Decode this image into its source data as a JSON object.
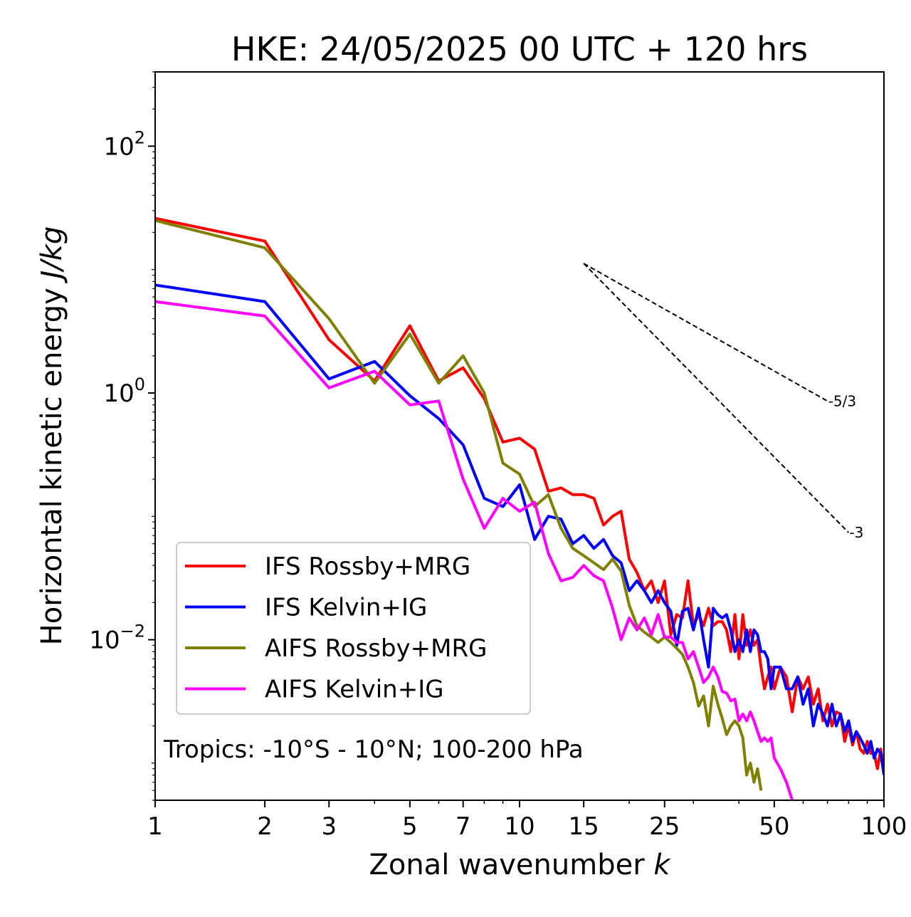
{
  "chart_data": {
    "type": "line",
    "title": "HKE: 24/05/2025 00 UTC + 120 hrs",
    "xlabel_text": "Zonal wavenumber ",
    "xlabel_var": "k",
    "ylabel_text": "Horizontal kinetic energy ",
    "ylabel_units": "J/kg",
    "xscale": "log",
    "yscale": "log",
    "xlim": [
      1,
      100
    ],
    "ylim": [
      0.0005,
      400
    ],
    "xticks": [
      1,
      2,
      3,
      5,
      7,
      10,
      15,
      25,
      50,
      100
    ],
    "xtick_labels": [
      "1",
      "2",
      "3",
      "5",
      "7",
      "10",
      "15",
      "25",
      "50",
      "100"
    ],
    "yticks": [
      0.01,
      1,
      100
    ],
    "ytick_labels": [
      {
        "base": "10",
        "exp": "−2"
      },
      {
        "base": "10",
        "exp": "0"
      },
      {
        "base": "10",
        "exp": "2"
      }
    ],
    "annotation": "Tropics: -10°S - 10°N; 100-200 hPa",
    "legend_position": "lower-left",
    "reference_slopes": [
      {
        "label": "-5/3",
        "slope": -1.6667,
        "x_start": 15,
        "y_start": 11.2,
        "x_end": 70
      },
      {
        "label": "-3",
        "slope": -3,
        "x_start": 15,
        "y_start": 11.2,
        "x_end": 80
      }
    ],
    "series": [
      {
        "name": "IFS Rossby+MRG",
        "color": "#ff0000",
        "x": [
          1,
          2,
          3,
          4,
          5,
          6,
          7,
          8,
          9,
          10,
          11,
          12,
          13,
          14,
          15,
          16,
          17,
          18,
          19,
          20,
          21,
          22,
          23,
          24,
          25,
          26,
          27,
          28,
          29,
          30,
          31,
          32,
          33,
          34,
          35,
          36,
          37,
          38,
          39,
          40,
          41,
          42,
          43,
          44,
          45,
          46,
          47,
          48,
          49,
          50,
          52,
          54,
          56,
          58,
          60,
          62,
          64,
          66,
          68,
          70,
          72,
          74,
          76,
          78,
          80,
          82,
          84,
          86,
          88,
          90,
          92,
          94,
          96,
          98,
          100
        ],
        "values": [
          26,
          17,
          2.7,
          1.25,
          3.5,
          1.25,
          1.6,
          0.9,
          0.4,
          0.43,
          0.35,
          0.16,
          0.17,
          0.15,
          0.15,
          0.14,
          0.085,
          0.1,
          0.11,
          0.045,
          0.035,
          0.025,
          0.03,
          0.02,
          0.03,
          0.011,
          0.016,
          0.015,
          0.03,
          0.013,
          0.016,
          0.013,
          0.018,
          0.013,
          0.014,
          0.014,
          0.012,
          0.008,
          0.016,
          0.007,
          0.016,
          0.009,
          0.012,
          0.009,
          0.01,
          0.006,
          0.004,
          0.005,
          0.006,
          0.004,
          0.006,
          0.005,
          0.0026,
          0.005,
          0.004,
          0.005,
          0.003,
          0.004,
          0.0022,
          0.003,
          0.002,
          0.0026,
          0.0025,
          0.0015,
          0.002,
          0.0014,
          0.0018,
          0.0013,
          0.0012,
          0.0015,
          0.0012,
          0.0012,
          0.0009,
          0.0013,
          0.0009
        ]
      },
      {
        "name": "IFS Kelvin+IG",
        "color": "#0000ff",
        "x": [
          1,
          2,
          3,
          4,
          5,
          6,
          7,
          8,
          9,
          10,
          11,
          12,
          13,
          14,
          15,
          16,
          17,
          18,
          19,
          20,
          21,
          22,
          23,
          24,
          25,
          26,
          27,
          28,
          29,
          30,
          31,
          32,
          33,
          34,
          35,
          36,
          37,
          38,
          39,
          40,
          41,
          42,
          43,
          44,
          45,
          46,
          47,
          48,
          49,
          50,
          52,
          54,
          56,
          58,
          60,
          62,
          64,
          66,
          68,
          70,
          72,
          74,
          76,
          78,
          80,
          82,
          84,
          86,
          88,
          90,
          92,
          94,
          96,
          98,
          100
        ],
        "values": [
          7.5,
          5.5,
          1.3,
          1.8,
          0.95,
          0.62,
          0.38,
          0.14,
          0.12,
          0.18,
          0.065,
          0.1,
          0.095,
          0.06,
          0.07,
          0.055,
          0.065,
          0.048,
          0.042,
          0.025,
          0.03,
          0.025,
          0.02,
          0.025,
          0.02,
          0.017,
          0.009,
          0.017,
          0.018,
          0.012,
          0.018,
          0.01,
          0.006,
          0.018,
          0.016,
          0.015,
          0.016,
          0.012,
          0.008,
          0.01,
          0.008,
          0.012,
          0.008,
          0.012,
          0.011,
          0.008,
          0.008,
          0.007,
          0.004,
          0.006,
          0.006,
          0.004,
          0.004,
          0.005,
          0.003,
          0.004,
          0.002,
          0.003,
          0.0025,
          0.002,
          0.003,
          0.002,
          0.0025,
          0.0018,
          0.0022,
          0.0015,
          0.0018,
          0.0016,
          0.0014,
          0.0012,
          0.0015,
          0.0011,
          0.0013,
          0.0012,
          0.0008
        ]
      },
      {
        "name": "AIFS Rossby+MRG",
        "color": "#808000",
        "x": [
          1,
          2,
          3,
          4,
          5,
          6,
          7,
          8,
          9,
          10,
          11,
          12,
          13,
          14,
          15,
          16,
          17,
          18,
          19,
          20,
          21,
          22,
          23,
          24,
          25,
          26,
          27,
          28,
          29,
          30,
          31,
          32,
          33,
          34,
          35,
          36,
          37,
          38,
          39,
          40,
          41,
          42,
          43,
          44,
          45,
          46
        ],
        "values": [
          25,
          15,
          4,
          1.2,
          3,
          1.2,
          2,
          1,
          0.27,
          0.22,
          0.12,
          0.15,
          0.08,
          0.055,
          0.048,
          0.042,
          0.037,
          0.045,
          0.036,
          0.019,
          0.013,
          0.0115,
          0.0105,
          0.0095,
          0.0105,
          0.0095,
          0.0085,
          0.0076,
          0.006,
          0.0045,
          0.0029,
          0.0035,
          0.002,
          0.0042,
          0.003,
          0.0023,
          0.0017,
          0.002,
          0.0022,
          0.002,
          0.0016,
          0.0008,
          0.001,
          0.0007,
          0.0009,
          0.0006
        ]
      },
      {
        "name": "AIFS Kelvin+IG",
        "color": "#ff00ff",
        "x": [
          1,
          2,
          3,
          4,
          5,
          6,
          7,
          8,
          9,
          10,
          11,
          12,
          13,
          14,
          15,
          16,
          17,
          18,
          19,
          20,
          21,
          22,
          23,
          24,
          25,
          26,
          27,
          28,
          29,
          30,
          31,
          32,
          33,
          34,
          35,
          36,
          37,
          38,
          39,
          40,
          41,
          42,
          43,
          44,
          45,
          46,
          47,
          48,
          49,
          50,
          52,
          54,
          56
        ],
        "values": [
          5.5,
          4.2,
          1.1,
          1.5,
          0.8,
          0.86,
          0.2,
          0.08,
          0.14,
          0.11,
          0.13,
          0.05,
          0.03,
          0.032,
          0.04,
          0.033,
          0.03,
          0.018,
          0.01,
          0.015,
          0.012,
          0.015,
          0.011,
          0.016,
          0.0105,
          0.0105,
          0.0095,
          0.0095,
          0.007,
          0.008,
          0.006,
          0.0045,
          0.005,
          0.006,
          0.005,
          0.0038,
          0.0037,
          0.0032,
          0.0033,
          0.0022,
          0.0025,
          0.0022,
          0.0026,
          0.0022,
          0.0018,
          0.0015,
          0.0016,
          0.0015,
          0.0016,
          0.0011,
          0.0009,
          0.0007,
          0.0005
        ]
      }
    ]
  }
}
